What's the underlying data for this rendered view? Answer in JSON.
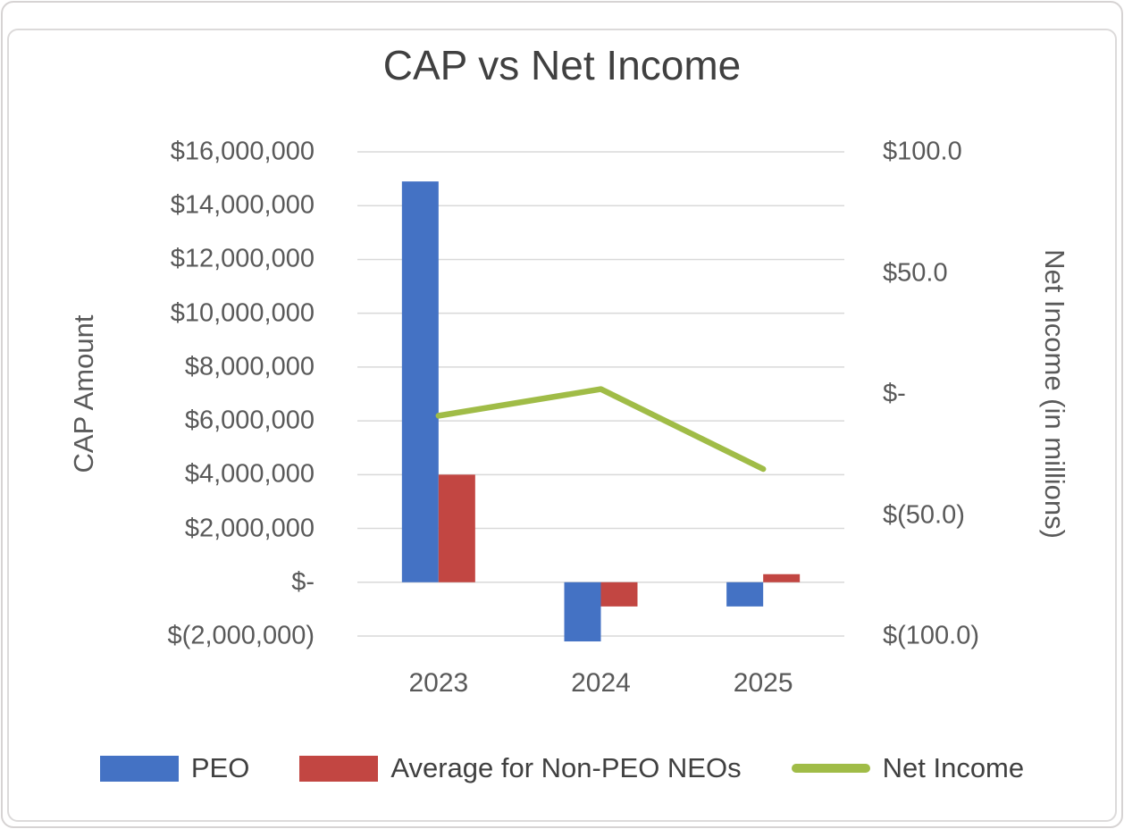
{
  "title": "CAP vs Net Income",
  "left_axis": {
    "title": "CAP Amount",
    "ticks": [
      "$16,000,000",
      "$14,000,000",
      "$12,000,000",
      "$10,000,000",
      "$8,000,000",
      "$6,000,000",
      "$4,000,000",
      "$2,000,000",
      "$-",
      "$(2,000,000)"
    ],
    "max": 16000000,
    "min": -2000000,
    "step": 2000000
  },
  "right_axis": {
    "title": "Net Income (in millions)",
    "ticks": [
      "$100.0",
      "$50.0",
      "$-",
      "$(50.0)",
      "$(100.0)"
    ],
    "max": 100,
    "min": -100,
    "step": 50
  },
  "x_axis": {
    "categories": [
      "2023",
      "2024",
      "2025"
    ]
  },
  "legend_labels": [
    "PEO",
    "Average for Non-PEO NEOs",
    "Net Income"
  ],
  "colors": {
    "peo": "#4472C4",
    "non_peo": "#C24642",
    "net_income": "#A0BC47",
    "grid": "#D9D9D9",
    "tick_text": "#595959",
    "title_text": "#404040"
  },
  "chart_data": {
    "type": "bar",
    "subtype": "combo-clustered-bar-plus-line-dual-axis",
    "title": "CAP vs Net Income",
    "categories": [
      "2023",
      "2024",
      "2025"
    ],
    "series": [
      {
        "name": "PEO",
        "type": "bar",
        "axis": "left",
        "color": "#4472C4",
        "values": [
          14900000,
          -2200000,
          -900000
        ]
      },
      {
        "name": "Average for Non-PEO NEOs",
        "type": "bar",
        "axis": "left",
        "color": "#C24642",
        "values": [
          4000000,
          -900000,
          300000
        ]
      },
      {
        "name": "Net Income",
        "type": "line",
        "axis": "right",
        "color": "#A0BC47",
        "values": [
          -9.0,
          2.0,
          -31.0
        ]
      }
    ],
    "ylabel_left": "CAP Amount",
    "ylabel_right": "Net Income (in millions)",
    "left_ylim": [
      -2000000,
      16000000
    ],
    "right_ylim": [
      -100,
      100
    ],
    "grid": true,
    "legend_position": "bottom"
  }
}
